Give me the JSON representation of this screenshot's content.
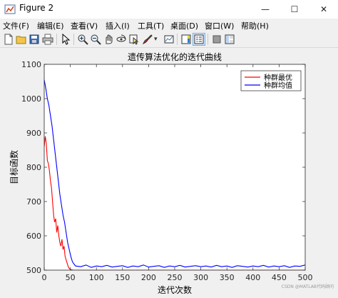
{
  "window": {
    "title": "Figure 2",
    "minimize": "—",
    "maximize": "☐",
    "close": "✕"
  },
  "menu": [
    {
      "label": "文件(F)"
    },
    {
      "label": "编辑(E)"
    },
    {
      "label": "查看(V)"
    },
    {
      "label": "插入(I)"
    },
    {
      "label": "工具(T)"
    },
    {
      "label": "桌面(D)"
    },
    {
      "label": "窗口(W)"
    },
    {
      "label": "帮助(H)"
    }
  ],
  "toolbar": [
    {
      "icon": "new-figure-icon"
    },
    {
      "icon": "open-file-icon"
    },
    {
      "icon": "save-icon"
    },
    {
      "icon": "print-icon"
    },
    {
      "icon": "pointer-icon"
    },
    {
      "icon": "zoom-in-icon"
    },
    {
      "icon": "zoom-out-icon"
    },
    {
      "icon": "pan-icon"
    },
    {
      "icon": "rotate-3d-icon"
    },
    {
      "icon": "data-cursor-icon"
    },
    {
      "icon": "brush-icon"
    },
    {
      "icon": "link-plot-icon"
    },
    {
      "icon": "insert-colorbar-icon"
    },
    {
      "icon": "insert-legend-icon"
    },
    {
      "icon": "hide-plot-tools-icon"
    },
    {
      "icon": "show-plot-tools-icon"
    }
  ],
  "chart_data": {
    "type": "line",
    "title": "遗传算法优化的迭代曲线",
    "xlabel": "迭代次数",
    "ylabel": "目标函数",
    "xlim": [
      0,
      500
    ],
    "ylim": [
      500,
      1100
    ],
    "xticks": [
      0,
      50,
      100,
      150,
      200,
      250,
      300,
      350,
      400,
      450,
      500
    ],
    "yticks": [
      500,
      600,
      700,
      800,
      900,
      1000,
      1100
    ],
    "grid": false,
    "legend_position": "top-right",
    "series": [
      {
        "name": "种群最优",
        "color": "#ff0000",
        "x": [
          0,
          2,
          4,
          6,
          8,
          10,
          12,
          14,
          16,
          18,
          20,
          22,
          24,
          26,
          28,
          30,
          32,
          34,
          36,
          38,
          40,
          42,
          44,
          46,
          48,
          50,
          55,
          500
        ],
        "y": [
          860,
          890,
          870,
          820,
          810,
          790,
          760,
          740,
          700,
          660,
          640,
          650,
          610,
          630,
          600,
          580,
          570,
          590,
          560,
          570,
          540,
          530,
          520,
          510,
          505,
          502,
          500,
          500
        ]
      },
      {
        "name": "种群均值",
        "color": "#0000ff",
        "x": [
          0,
          3,
          6,
          9,
          12,
          15,
          18,
          21,
          24,
          27,
          30,
          33,
          36,
          39,
          42,
          45,
          48,
          51,
          54,
          57,
          60,
          70,
          80,
          90,
          100,
          110,
          120,
          130,
          140,
          150,
          160,
          170,
          180,
          190,
          200,
          210,
          220,
          230,
          240,
          250,
          260,
          270,
          280,
          290,
          300,
          310,
          320,
          330,
          340,
          350,
          360,
          370,
          380,
          390,
          400,
          410,
          420,
          430,
          440,
          450,
          460,
          470,
          480,
          490,
          500
        ],
        "y": [
          1055,
          1030,
          1000,
          980,
          950,
          920,
          880,
          840,
          800,
          760,
          720,
          690,
          660,
          640,
          610,
          580,
          560,
          540,
          525,
          518,
          512,
          510,
          515,
          508,
          512,
          510,
          514,
          509,
          511,
          513,
          508,
          512,
          510,
          515,
          509,
          511,
          513,
          508,
          512,
          510,
          514,
          509,
          511,
          513,
          510,
          512,
          509,
          514,
          510,
          512,
          508,
          513,
          511,
          509,
          512,
          510,
          514,
          509,
          512,
          510,
          513,
          508,
          512,
          511,
          515
        ]
      }
    ]
  },
  "watermark": "CSDN @MATLAB代码顾问"
}
